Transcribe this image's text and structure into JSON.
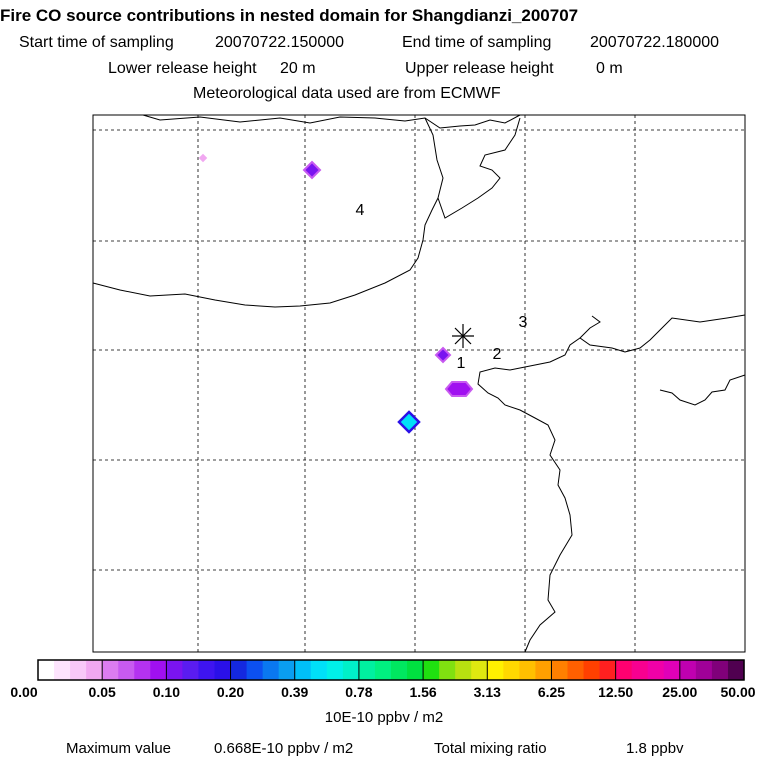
{
  "title": "Fire CO source contributions in nested domain for Shangdianzi_200707",
  "sampling": {
    "start_label": "Start time of sampling",
    "start_value": "20070722.150000",
    "end_label": "End time of sampling",
    "end_value": "20070722.180000"
  },
  "release": {
    "lower_label": "Lower release height",
    "lower_value": "20 m",
    "upper_label": "Upper release height",
    "upper_value": "0 m"
  },
  "met_note": "Meteorological data used are from ECMWF",
  "map": {
    "labels": [
      "1",
      "2",
      "3",
      "4"
    ],
    "receptor_symbol": "asterisk"
  },
  "colorbar": {
    "ticks": [
      "0.00",
      "0.05",
      "0.10",
      "0.20",
      "0.39",
      "0.78",
      "1.56",
      "3.13",
      "6.25",
      "12.50",
      "25.00",
      "50.00"
    ],
    "colors": [
      "#ffffff",
      "#fde4fd",
      "#f8c8f8",
      "#f1a8f1",
      "#dc7cf0",
      "#c85af0",
      "#b432f0",
      "#a010f0",
      "#7a14f0",
      "#5a1cf0",
      "#3e14f0",
      "#2a10e8",
      "#1428e0",
      "#0c50f0",
      "#0a78f0",
      "#0a9ef0",
      "#00c0f8",
      "#00e0f8",
      "#00f0e8",
      "#00f0c8",
      "#00f0a0",
      "#00f080",
      "#00e860",
      "#00e040",
      "#20e010",
      "#80e010",
      "#b8e010",
      "#e0e810",
      "#fff000",
      "#ffd800",
      "#ffc000",
      "#ffa000",
      "#ff8000",
      "#ff6000",
      "#ff4000",
      "#ff2020",
      "#ff0070",
      "#f80090",
      "#f000a8",
      "#e000b8",
      "#c000b0",
      "#a00098",
      "#80007a",
      "#500050"
    ],
    "units": "10E-10 ppbv / m2"
  },
  "footer": {
    "max_label": "Maximum value",
    "max_value": "0.668E-10 ppbv / m2",
    "mix_label": "Total mixing ratio",
    "mix_value": "1.8 ppbv"
  }
}
